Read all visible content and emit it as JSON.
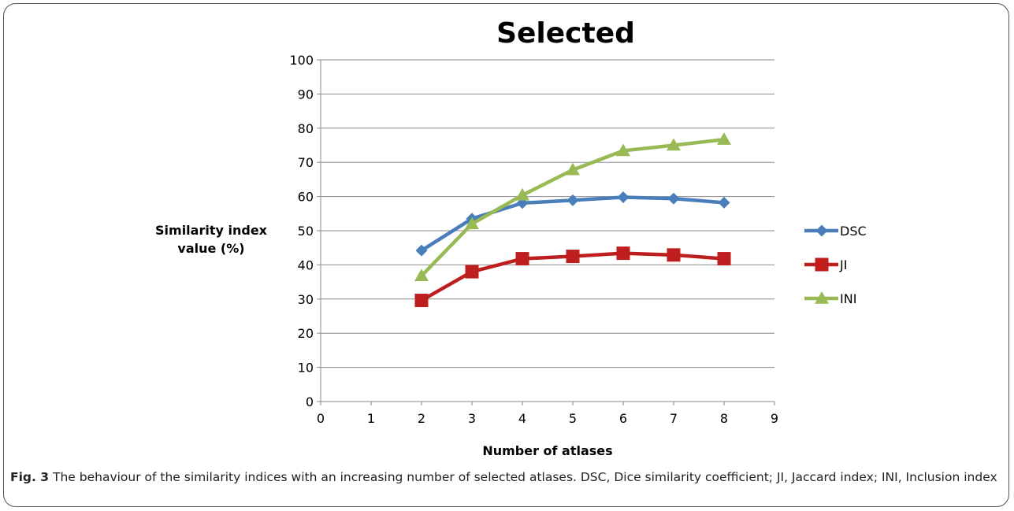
{
  "chart_data": {
    "type": "line",
    "title": "Selected",
    "xlabel": "Number of atlases",
    "ylabel": "Similarity index value (%)",
    "xlim": [
      0,
      9
    ],
    "ylim": [
      0,
      100
    ],
    "xticks": [
      0,
      1,
      2,
      3,
      4,
      5,
      6,
      7,
      8,
      9
    ],
    "yticks": [
      0,
      10,
      20,
      30,
      40,
      50,
      60,
      70,
      80,
      90,
      100
    ],
    "grid": "horizontal",
    "legend_position": "right",
    "x": [
      2,
      3,
      4,
      5,
      6,
      7,
      8
    ],
    "series": [
      {
        "name": "DSC",
        "values": [
          44.2,
          53.5,
          58.1,
          58.9,
          59.8,
          59.4,
          58.2
        ],
        "color": "#4a7ebb",
        "marker": "diamond"
      },
      {
        "name": "JI",
        "values": [
          29.6,
          38.0,
          41.8,
          42.5,
          43.4,
          42.9,
          41.8
        ],
        "color": "#be1e1e",
        "marker": "square"
      },
      {
        "name": "INI",
        "values": [
          36.8,
          52.0,
          60.4,
          67.8,
          73.4,
          75.0,
          76.7
        ],
        "color": "#98b954",
        "marker": "triangle"
      }
    ]
  },
  "caption": {
    "label": "Fig. 3",
    "text": " The behaviour of the similarity indices with an increasing number of selected atlases. DSC, Dice similarity coefficient; JI, Jaccard index; INI, Inclusion index"
  }
}
